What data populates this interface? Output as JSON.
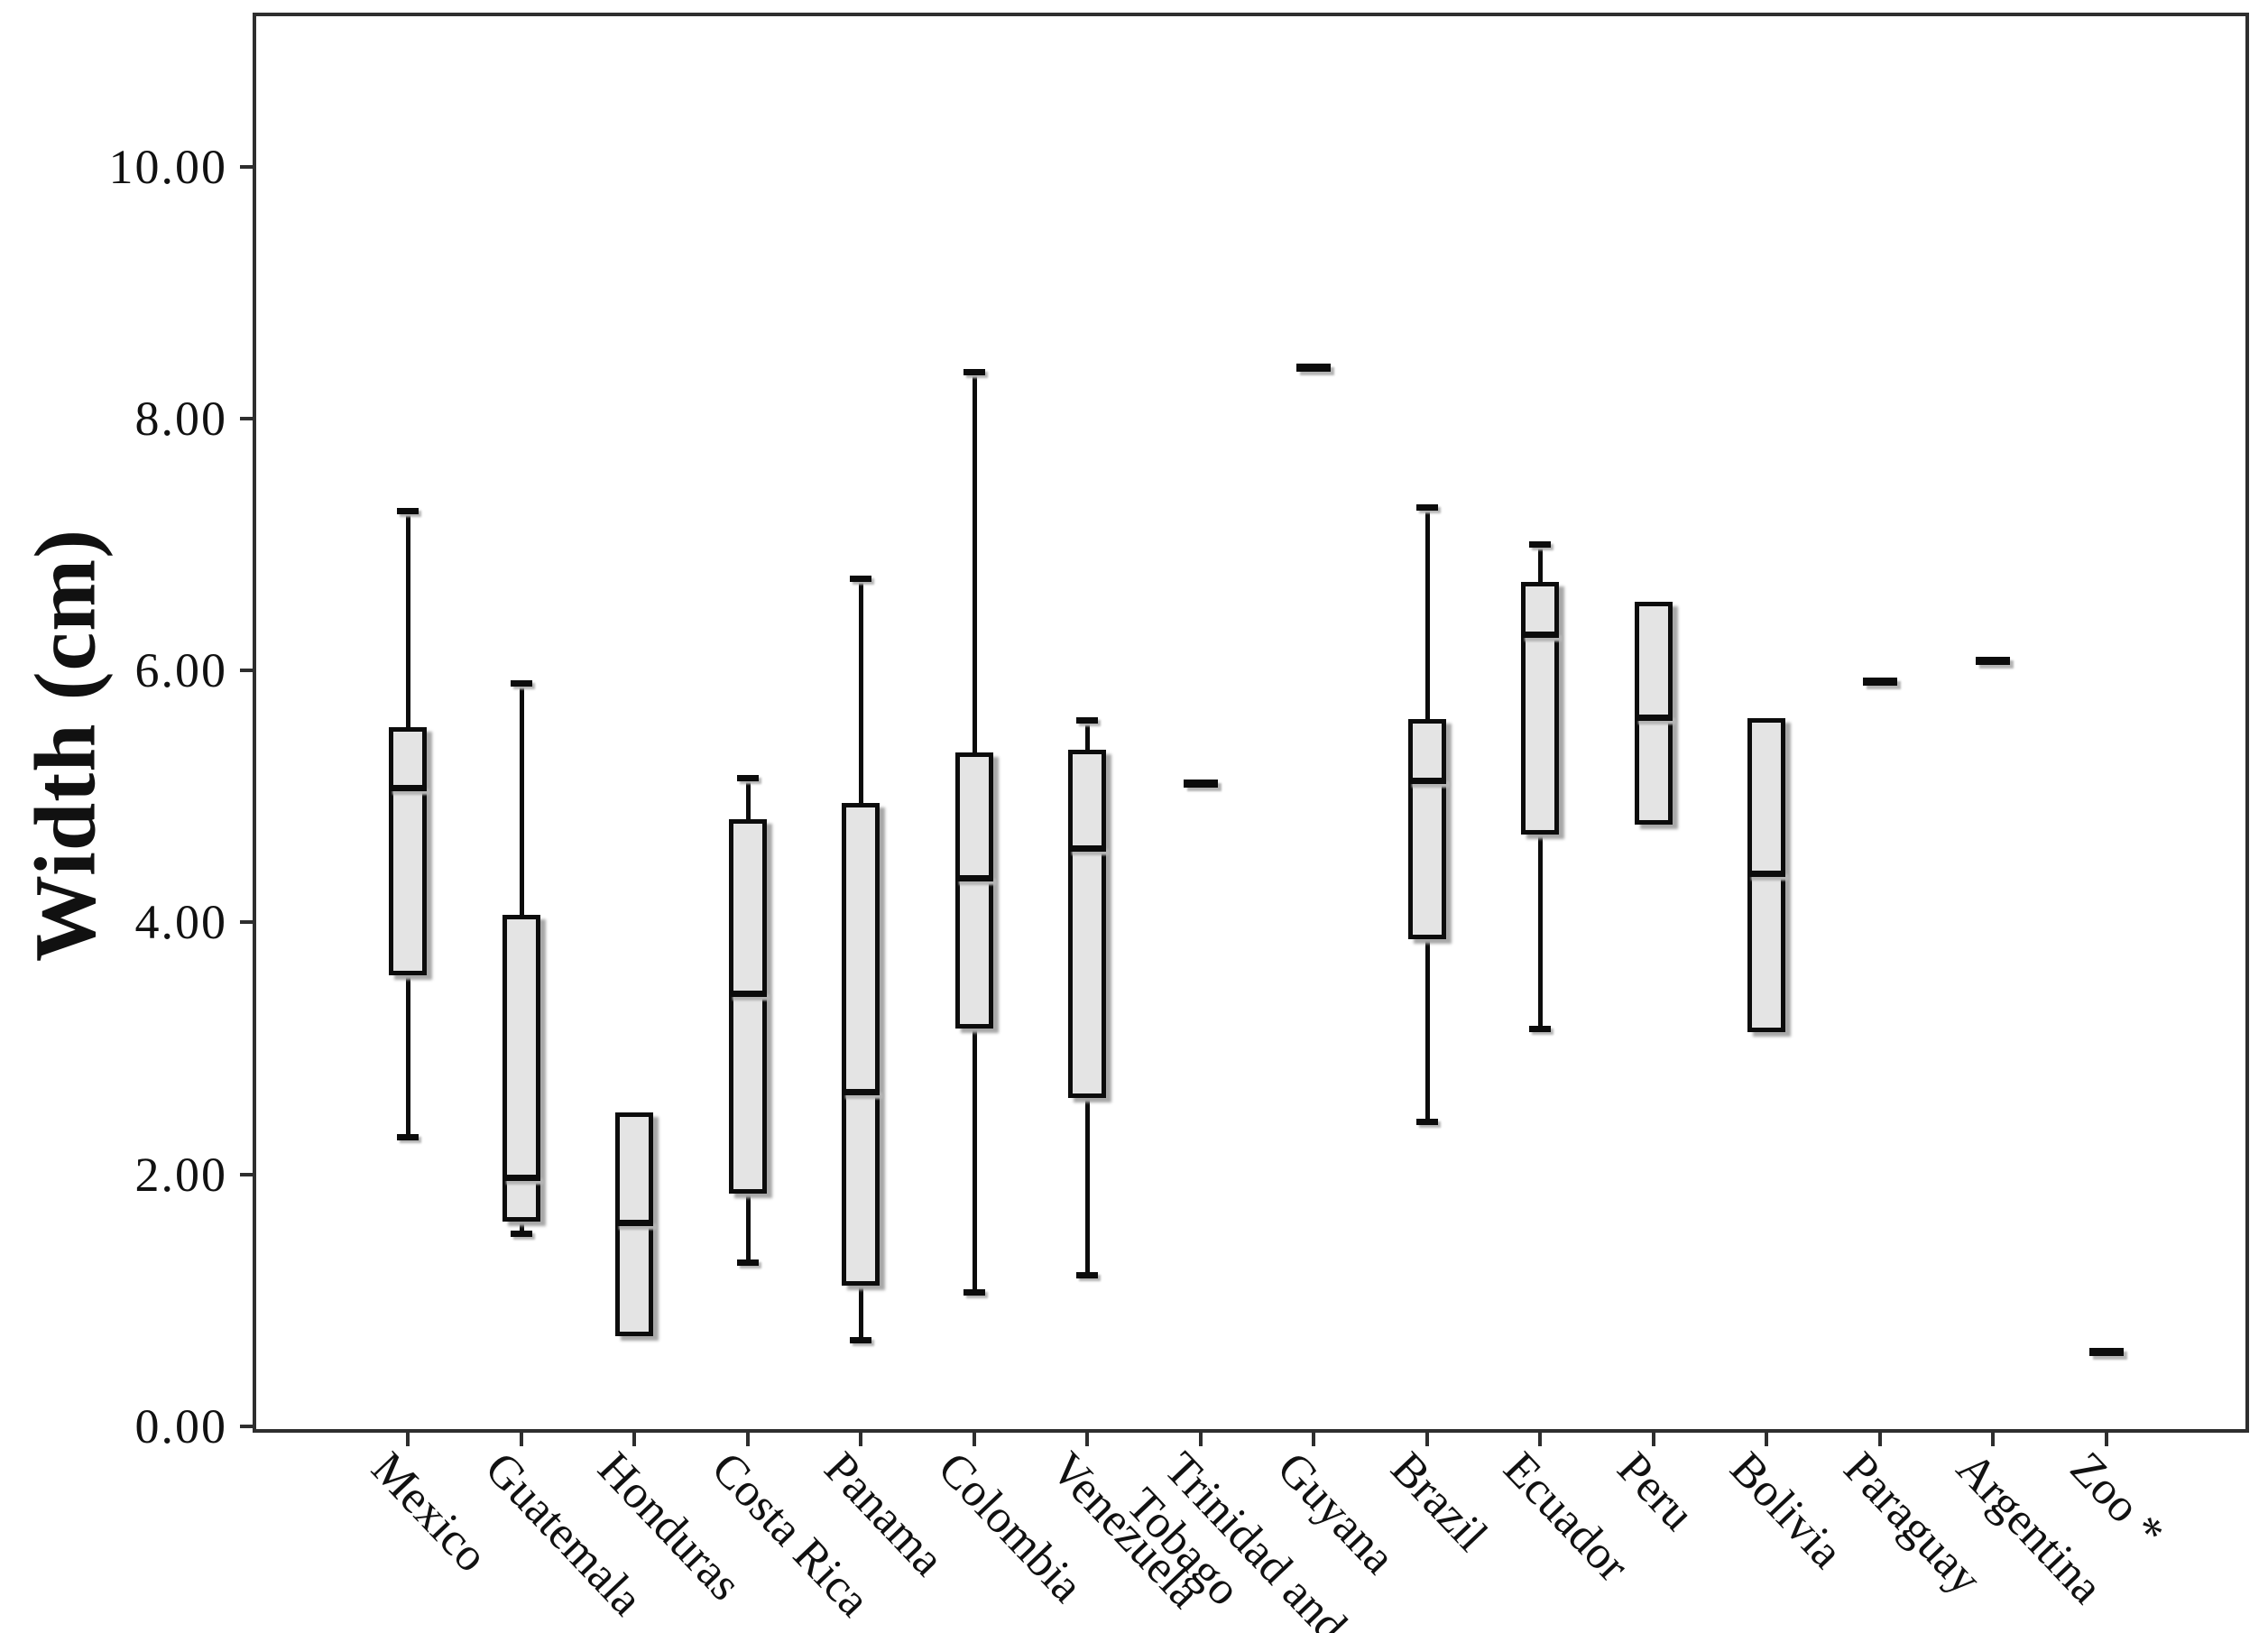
{
  "figure": {
    "background_color": "#ffffff",
    "frame_color": "#2e2e2e",
    "box_fill_color": "#e4e4e4",
    "line_color": "#0c0c0c"
  },
  "chart_data": {
    "type": "boxplot",
    "title": "",
    "xlabel": "",
    "ylabel": "Width (cm)",
    "ylim": [
      0,
      11.2
    ],
    "grid": false,
    "legend": "none",
    "y_ticks": [
      {
        "value": 0,
        "label": "0.00"
      },
      {
        "value": 2,
        "label": "2.00"
      },
      {
        "value": 4,
        "label": "4.00"
      },
      {
        "value": 6,
        "label": "6.00"
      },
      {
        "value": 8,
        "label": "8.00"
      },
      {
        "value": 10,
        "label": "10.00"
      }
    ],
    "categories": [
      "Mexico",
      "Guatemala",
      "Honduras",
      "Costa Rica",
      "Panama",
      "Colombia",
      "Venezuela",
      "Trinidad and Tobago",
      "Guyana",
      "Brazil",
      "Ecuador",
      "Peru",
      "Bolivia",
      "Paraguay",
      "Argentina",
      "Zoo *"
    ],
    "series": [
      {
        "label": "Mexico",
        "label_lines": [
          "Mexico"
        ],
        "min": 2.3,
        "q1": 3.6,
        "median": 5.06,
        "q3": 5.53,
        "max": 7.27
      },
      {
        "label": "Guatemala",
        "label_lines": [
          "Guatemala"
        ],
        "min": 1.53,
        "q1": 1.65,
        "median": 1.97,
        "q3": 4.04,
        "max": 5.9
      },
      {
        "label": "Honduras",
        "label_lines": [
          "Honduras"
        ],
        "min": null,
        "q1": 0.74,
        "median": 1.61,
        "q3": 2.47,
        "max": null
      },
      {
        "label": "Costa Rica",
        "label_lines": [
          "Costa Rica"
        ],
        "min": 1.3,
        "q1": 1.87,
        "median": 3.43,
        "q3": 4.8,
        "max": 5.15
      },
      {
        "label": "Panama",
        "label_lines": [
          "Panama"
        ],
        "min": 0.69,
        "q1": 1.14,
        "median": 2.65,
        "q3": 4.93,
        "max": 6.73
      },
      {
        "label": "Colombia",
        "label_lines": [
          "Colombia"
        ],
        "min": 1.07,
        "q1": 3.18,
        "median": 4.35,
        "q3": 5.33,
        "max": 8.37
      },
      {
        "label": "Venezuela",
        "label_lines": [
          "Venezuela"
        ],
        "min": 1.2,
        "q1": 2.63,
        "median": 4.58,
        "q3": 5.35,
        "max": 5.61
      },
      {
        "label": "Trinidad and Tobago",
        "label_lines": [
          "Trinidad and",
          "Tobago"
        ],
        "value": 5.1
      },
      {
        "label": "Guyana",
        "label_lines": [
          "Guyana"
        ],
        "value": 8.4
      },
      {
        "label": "Brazil",
        "label_lines": [
          "Brazil"
        ],
        "min": 2.42,
        "q1": 3.89,
        "median": 5.12,
        "q3": 5.59,
        "max": 7.3
      },
      {
        "label": "Ecuador",
        "label_lines": [
          "Ecuador"
        ],
        "min": 3.16,
        "q1": 4.72,
        "median": 6.28,
        "q3": 6.68,
        "max": 7.0
      },
      {
        "label": "Peru",
        "label_lines": [
          "Peru"
        ],
        "min": null,
        "q1": 4.8,
        "median": 5.62,
        "q3": 6.52,
        "max": null
      },
      {
        "label": "Bolivia",
        "label_lines": [
          "Bolivia"
        ],
        "min": null,
        "q1": 3.15,
        "median": 4.38,
        "q3": 5.6,
        "max": null
      },
      {
        "label": "Paraguay",
        "label_lines": [
          "Paraguay"
        ],
        "value": 5.91
      },
      {
        "label": "Argentina",
        "label_lines": [
          "Argentina"
        ],
        "value": 6.07
      },
      {
        "label": "Zoo *",
        "label_lines": [
          "Zoo *"
        ],
        "value": 0.59
      }
    ]
  }
}
